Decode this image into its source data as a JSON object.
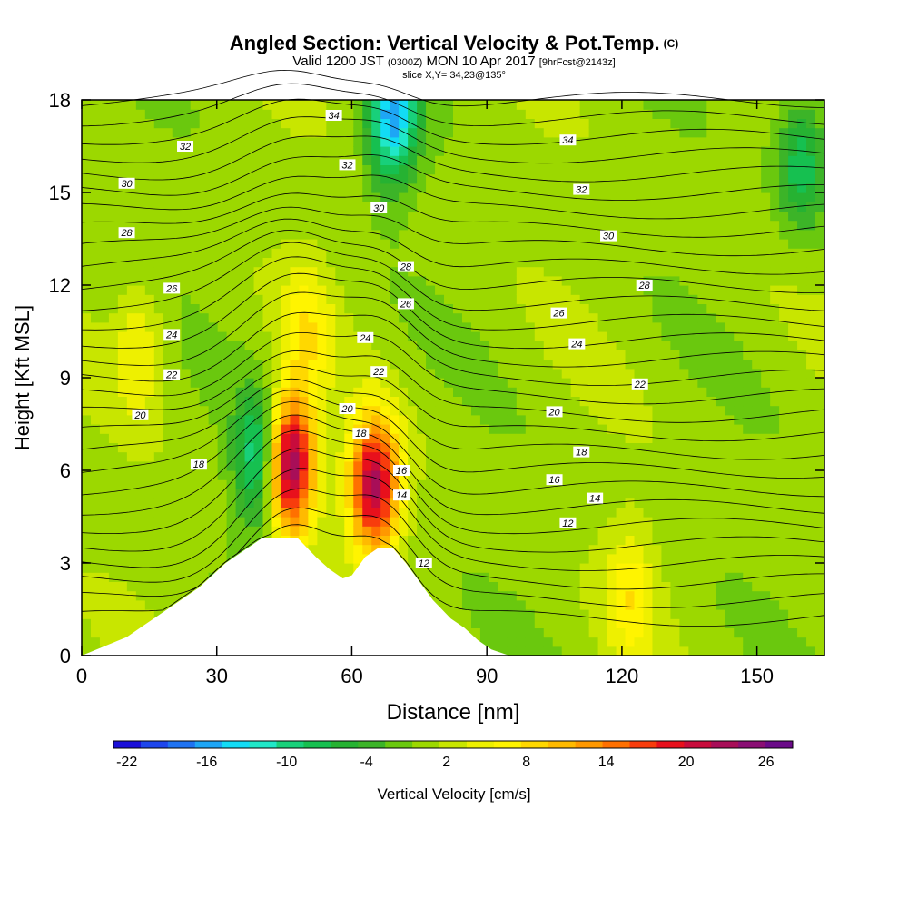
{
  "title": {
    "main": "Angled Section: Vertical Velocity & Pot.Temp.",
    "main_suffix": "(C)",
    "valid_prefix": "Valid 1200 JST",
    "valid_utc": "(0300Z)",
    "valid_date": "MON 10 Apr 2017",
    "valid_run": "[9hrFcst@2143z]",
    "slice": "slice X,Y= 34,23@135°"
  },
  "chart_data": {
    "type": "heatmap",
    "xlabel": "Distance [nm]",
    "ylabel": "Height [Kft MSL]",
    "xlim": [
      0,
      165
    ],
    "ylim": [
      0,
      18
    ],
    "xticks": [
      0,
      30,
      60,
      90,
      120,
      150
    ],
    "yticks": [
      0,
      3,
      6,
      9,
      12,
      15,
      18
    ],
    "colorbar": {
      "label": "Vertical Velocity [cm/s]",
      "min": -23,
      "max": 28,
      "tick_values": [
        -22,
        -16,
        -10,
        -4,
        2,
        8,
        14,
        20,
        26
      ],
      "tick_labels": [
        "-22",
        "-16",
        "-10",
        "-4",
        "2",
        "8",
        "14",
        "20",
        "26"
      ],
      "colors": [
        "#1a0fd8",
        "#1e46ec",
        "#1f73f2",
        "#1ea6f5",
        "#12dcf5",
        "#20e8c8",
        "#18d07a",
        "#16c050",
        "#26b232",
        "#3cb428",
        "#6ac80e",
        "#9cd800",
        "#c8e600",
        "#eef000",
        "#fff400",
        "#ffd800",
        "#ffba00",
        "#ff9800",
        "#ff7000",
        "#f83c0c",
        "#e8101c",
        "#c80c3c",
        "#a80e58",
        "#8a0e74",
        "#6a0a88"
      ]
    },
    "terrain_profile": {
      "x": [
        0,
        10,
        13,
        16,
        19,
        22,
        26,
        29,
        32,
        35,
        38,
        40,
        42,
        43,
        45,
        48,
        50,
        52,
        55,
        58,
        60,
        63,
        66,
        69,
        72,
        74,
        76,
        78,
        80,
        82,
        85,
        88,
        91,
        95,
        165
      ],
      "h": [
        0,
        0.6,
        0.9,
        1.2,
        1.5,
        1.8,
        2.2,
        2.6,
        3.0,
        3.3,
        3.6,
        3.8,
        3.8,
        3.8,
        3.8,
        3.8,
        3.5,
        3.2,
        2.8,
        2.5,
        2.6,
        3.2,
        3.5,
        3.5,
        3.0,
        2.6,
        2.2,
        1.8,
        1.5,
        1.2,
        0.9,
        0.5,
        0.2,
        0,
        0
      ]
    },
    "velocity_features": [
      {
        "x": 46,
        "y": 6.2,
        "value": 27
      },
      {
        "x": 65,
        "y": 5.5,
        "value": 22
      },
      {
        "x": 40,
        "y": 6.3,
        "value": -14
      },
      {
        "x": 69,
        "y": 17.5,
        "value": -16
      },
      {
        "x": 50,
        "y": 10.5,
        "value": 6
      },
      {
        "x": 122,
        "y": 2.0,
        "value": 6
      },
      {
        "x": 13,
        "y": 10.0,
        "value": 5
      },
      {
        "x": 160,
        "y": 16.0,
        "value": -9
      }
    ],
    "isentropes": {
      "label_values": [
        12,
        14,
        16,
        18,
        20,
        22,
        24,
        26,
        28,
        30,
        32,
        34
      ],
      "labels": [
        {
          "text": "34",
          "x": 56,
          "y": 17.5
        },
        {
          "text": "34",
          "x": 108,
          "y": 16.7
        },
        {
          "text": "32",
          "x": 23,
          "y": 16.5
        },
        {
          "text": "32",
          "x": 59,
          "y": 15.9
        },
        {
          "text": "32",
          "x": 111,
          "y": 15.1
        },
        {
          "text": "30",
          "x": 10,
          "y": 15.3
        },
        {
          "text": "30",
          "x": 66,
          "y": 14.5
        },
        {
          "text": "30",
          "x": 117,
          "y": 13.6
        },
        {
          "text": "28",
          "x": 10,
          "y": 13.7
        },
        {
          "text": "28",
          "x": 72,
          "y": 12.6
        },
        {
          "text": "28",
          "x": 125,
          "y": 12.0
        },
        {
          "text": "26",
          "x": 20,
          "y": 11.9
        },
        {
          "text": "26",
          "x": 72,
          "y": 11.4
        },
        {
          "text": "26",
          "x": 106,
          "y": 11.1
        },
        {
          "text": "24",
          "x": 20,
          "y": 10.4
        },
        {
          "text": "24",
          "x": 63,
          "y": 10.3
        },
        {
          "text": "24",
          "x": 110,
          "y": 10.1
        },
        {
          "text": "22",
          "x": 20,
          "y": 9.1
        },
        {
          "text": "22",
          "x": 66,
          "y": 9.2
        },
        {
          "text": "22",
          "x": 124,
          "y": 8.8
        },
        {
          "text": "20",
          "x": 13,
          "y": 7.8
        },
        {
          "text": "20",
          "x": 59,
          "y": 8.0
        },
        {
          "text": "20",
          "x": 105,
          "y": 7.9
        },
        {
          "text": "18",
          "x": 26,
          "y": 6.2
        },
        {
          "text": "18",
          "x": 62,
          "y": 7.2
        },
        {
          "text": "18",
          "x": 111,
          "y": 6.6
        },
        {
          "text": "16",
          "x": 71,
          "y": 6.0
        },
        {
          "text": "16",
          "x": 105,
          "y": 5.7
        },
        {
          "text": "14",
          "x": 71,
          "y": 5.2
        },
        {
          "text": "14",
          "x": 114,
          "y": 5.1
        },
        {
          "text": "12",
          "x": 76,
          "y": 3.0
        },
        {
          "text": "12",
          "x": 108,
          "y": 4.3
        }
      ]
    }
  }
}
